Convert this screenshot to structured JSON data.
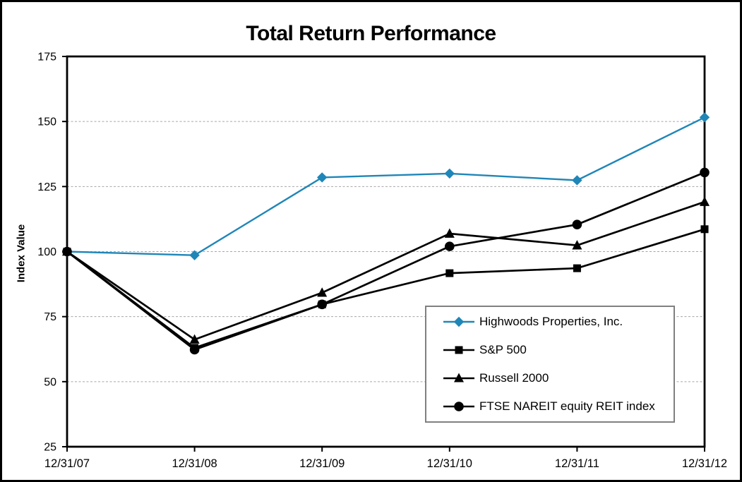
{
  "window": {
    "background": "#ffffff",
    "outer_border_color": "#000000",
    "legend_border_color": "#808080"
  },
  "chart_data": {
    "type": "line",
    "title": "Total Return Performance",
    "xlabel": "",
    "ylabel": "Index Value",
    "x_labels": [
      "12/31/07",
      "12/31/08",
      "12/31/09",
      "12/31/10",
      "12/31/11",
      "12/31/12"
    ],
    "y_ticks": [
      25,
      50,
      75,
      100,
      125,
      150,
      175
    ],
    "ylim": [
      25,
      175
    ],
    "grid": "horizontal dashed gridlines at 50,75,100,125,150",
    "gridline_color": "#a6a6a6",
    "legend_position": "inside lower-right",
    "series": [
      {
        "name": "Highwoods Properties, Inc.",
        "color": "#1f86b8",
        "marker": "diamond",
        "values": [
          100,
          98.6,
          128.5,
          130.0,
          127.4,
          151.6
        ]
      },
      {
        "name": "S&P 500",
        "color": "#000000",
        "marker": "square",
        "values": [
          100,
          63.0,
          79.7,
          91.7,
          93.6,
          108.6
        ]
      },
      {
        "name": "Russell 2000",
        "color": "#000000",
        "marker": "triangle",
        "values": [
          100,
          66.2,
          84.2,
          106.9,
          102.4,
          119.1
        ]
      },
      {
        "name": "FTSE NAREIT equity REIT index",
        "color": "#000000",
        "marker": "circle",
        "values": [
          100,
          62.3,
          79.7,
          102.0,
          110.4,
          130.4
        ]
      }
    ]
  }
}
